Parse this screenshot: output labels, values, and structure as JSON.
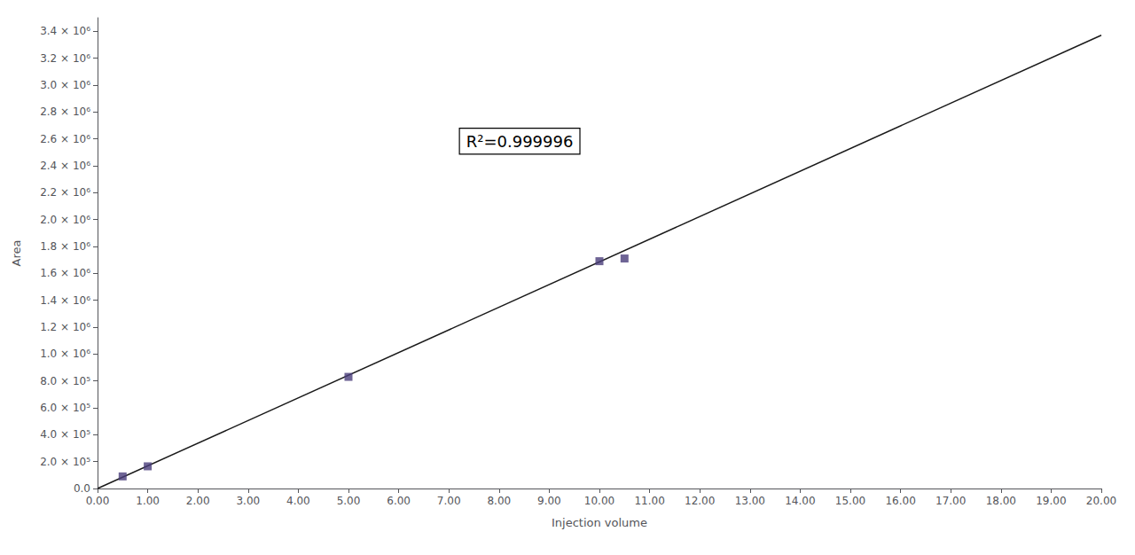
{
  "chart_data": {
    "type": "scatter",
    "x_label": "Injection volume",
    "y_label": "Area",
    "annotations": [
      "R²=0.999996"
    ],
    "series": [
      {
        "type": "line",
        "color": "#1a1a1a",
        "x": [
          0.0,
          20.0
        ],
        "values": [
          0,
          3370000
        ]
      },
      {
        "type": "scatter",
        "color": "#4a3d7a",
        "marker": "square",
        "x": [
          0.5,
          1.0,
          5.0,
          10.0,
          10.5
        ],
        "values": [
          90000,
          165000,
          830000,
          1690000,
          1710000
        ]
      }
    ],
    "xlim": [
      0.0,
      20.0
    ],
    "ylim": [
      0,
      3500000
    ],
    "xticks": [
      {
        "value": 0.0,
        "label": "0.00"
      },
      {
        "value": 1.0,
        "label": "1.00"
      },
      {
        "value": 2.0,
        "label": "2.00"
      },
      {
        "value": 3.0,
        "label": "3.00"
      },
      {
        "value": 4.0,
        "label": "4.00"
      },
      {
        "value": 5.0,
        "label": "5.00"
      },
      {
        "value": 6.0,
        "label": "6.00"
      },
      {
        "value": 7.0,
        "label": "7.00"
      },
      {
        "value": 8.0,
        "label": "8.00"
      },
      {
        "value": 9.0,
        "label": "9.00"
      },
      {
        "value": 10.0,
        "label": "10.00"
      },
      {
        "value": 11.0,
        "label": "11.00"
      },
      {
        "value": 12.0,
        "label": "12.00"
      },
      {
        "value": 13.0,
        "label": "13.00"
      },
      {
        "value": 14.0,
        "label": "14.00"
      },
      {
        "value": 15.0,
        "label": "15.00"
      },
      {
        "value": 16.0,
        "label": "16.00"
      },
      {
        "value": 17.0,
        "label": "17.00"
      },
      {
        "value": 18.0,
        "label": "18.00"
      },
      {
        "value": 19.0,
        "label": "19.00"
      },
      {
        "value": 20.0,
        "label": "20.00"
      }
    ],
    "yticks": [
      {
        "value": 0,
        "label": "0.0"
      },
      {
        "value": 200000,
        "label": "2.0 × 10⁵"
      },
      {
        "value": 400000,
        "label": "4.0 × 10⁵"
      },
      {
        "value": 600000,
        "label": "6.0 × 10⁵"
      },
      {
        "value": 800000,
        "label": "8.0 × 10⁵"
      },
      {
        "value": 1000000,
        "label": "1.0 × 10⁶"
      },
      {
        "value": 1200000,
        "label": "1.2 × 10⁶"
      },
      {
        "value": 1400000,
        "label": "1.4 × 10⁶"
      },
      {
        "value": 1600000,
        "label": "1.6 × 10⁶"
      },
      {
        "value": 1800000,
        "label": "1.8 × 10⁶"
      },
      {
        "value": 2000000,
        "label": "2.0 × 10⁶"
      },
      {
        "value": 2200000,
        "label": "2.2 × 10⁶"
      },
      {
        "value": 2400000,
        "label": "2.4 × 10⁶"
      },
      {
        "value": 2600000,
        "label": "2.6 × 10⁶"
      },
      {
        "value": 2800000,
        "label": "2.8 × 10⁶"
      },
      {
        "value": 3000000,
        "label": "3.0 × 10⁶"
      },
      {
        "value": 3200000,
        "label": "3.2 × 10⁶"
      },
      {
        "value": 3400000,
        "label": "3.4 × 10⁶"
      }
    ],
    "grid": false
  }
}
